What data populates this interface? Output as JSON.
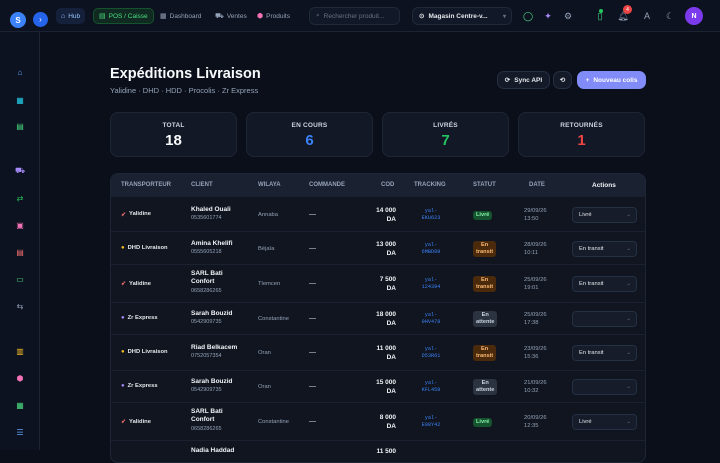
{
  "topbar": {
    "logo_letter": "S",
    "nav": [
      {
        "label": "Hub",
        "icon": "home-icon"
      },
      {
        "label": "POS / Caisse",
        "icon": "register-icon"
      },
      {
        "label": "Dashboard",
        "icon": "dashboard-icon"
      },
      {
        "label": "Ventes",
        "icon": "cart-icon"
      },
      {
        "label": "Produits",
        "icon": "box-icon"
      }
    ],
    "search_placeholder": "Rechercher produit...",
    "store": "Magasin Centre-v...",
    "notification_count": "4",
    "avatar_letter": "N"
  },
  "page": {
    "title": "Expéditions Livraison",
    "subtitle": "Yalidine · DHD · HDD · Procolis · Zr Express",
    "sync_label": "Sync API",
    "new_label": "Nouveau colis"
  },
  "stats": [
    {
      "label": "TOTAL",
      "value": "18",
      "color": "#f8fafc"
    },
    {
      "label": "EN COURS",
      "value": "6",
      "color": "#3b82f6"
    },
    {
      "label": "LIVRÉS",
      "value": "7",
      "color": "#22c55e"
    },
    {
      "label": "RETOURNÉS",
      "value": "1",
      "color": "#ef4444"
    }
  ],
  "table": {
    "headers": [
      "TRANSPORTEUR",
      "CLIENT",
      "WILAYA",
      "COMMANDE",
      "COD",
      "TRACKING",
      "STATUT",
      "DATE",
      "Actions"
    ],
    "rows": [
      {
        "carrier": "Yalidine",
        "carrier_icon": "rocket-icon",
        "client": "Khaled Ouali",
        "phone": "0535601774",
        "wilaya": "Annaba",
        "commande": "—",
        "cod1": "14 000",
        "cod2": "DA",
        "trk1": "yal-",
        "trk2": "EKU623",
        "status1": "Livré",
        "status2": "",
        "status_kind": "livre",
        "date1": "29/09/26",
        "date2": "13:50",
        "action": "Livré"
      },
      {
        "carrier": "DHD Livraison",
        "carrier_icon": "circle-icon",
        "client": "Amina Khelifi",
        "phone": "0555605218",
        "wilaya": "Béjaïa",
        "commande": "—",
        "cod1": "13 000",
        "cod2": "DA",
        "trk1": "yal-",
        "trk2": "6MBD89",
        "status1": "En",
        "status2": "transit",
        "status_kind": "transit",
        "date1": "28/09/26",
        "date2": "10:11",
        "action": "En transit"
      },
      {
        "carrier": "Yalidine",
        "carrier_icon": "rocket-icon",
        "client": "SARL Bati",
        "client2": "Confort",
        "phone": "0658286265",
        "wilaya": "Tlemcen",
        "commande": "—",
        "cod1": "7 500",
        "cod2": "DA",
        "trk1": "yal-",
        "trk2": "124394",
        "status1": "En",
        "status2": "transit",
        "status_kind": "transit",
        "date1": "25/09/26",
        "date2": "19:01",
        "action": "En transit"
      },
      {
        "carrier": "Zr Express",
        "carrier_icon": "circle-icon",
        "client": "Sarah Bouzid",
        "phone": "0542909735",
        "wilaya": "Constantine",
        "commande": "—",
        "cod1": "18 000",
        "cod2": "DA",
        "trk1": "yal-",
        "trk2": "0HV478",
        "status1": "En",
        "status2": "attente",
        "status_kind": "attente",
        "date1": "25/09/26",
        "date2": "17:38",
        "action": ""
      },
      {
        "carrier": "DHD Livraison",
        "carrier_icon": "circle-icon",
        "client": "Riad Belkacem",
        "phone": "0752057354",
        "wilaya": "Oran",
        "commande": "—",
        "cod1": "11 000",
        "cod2": "DA",
        "trk1": "yal-",
        "trk2": "D53R61",
        "status1": "En",
        "status2": "transit",
        "status_kind": "transit",
        "date1": "23/09/26",
        "date2": "15:36",
        "action": "En transit"
      },
      {
        "carrier": "Zr Express",
        "carrier_icon": "circle-icon",
        "client": "Sarah Bouzid",
        "phone": "0542909735",
        "wilaya": "Oran",
        "commande": "—",
        "cod1": "15 000",
        "cod2": "DA",
        "trk1": "yal-",
        "trk2": "KFL458",
        "status1": "En",
        "status2": "attente",
        "status_kind": "attente",
        "date1": "21/09/26",
        "date2": "10:32",
        "action": ""
      },
      {
        "carrier": "Yalidine",
        "carrier_icon": "rocket-icon",
        "client": "SARL Bati",
        "client2": "Confort",
        "phone": "0658286265",
        "wilaya": "Constantine",
        "commande": "—",
        "cod1": "8 000",
        "cod2": "DA",
        "trk1": "yal-",
        "trk2": "E98Y42",
        "status1": "Livré",
        "status2": "",
        "status_kind": "livre",
        "date1": "20/09/26",
        "date2": "12:35",
        "action": "Livré"
      },
      {
        "carrier": "",
        "carrier_icon": "",
        "client": "Nadia Haddad",
        "phone": "",
        "wilaya": "",
        "commande": "",
        "cod1": "11 500",
        "cod2": "",
        "trk1": "",
        "trk2": "",
        "status1": "",
        "status2": "",
        "status_kind": "",
        "date1": "",
        "date2": "",
        "action": ""
      }
    ]
  }
}
